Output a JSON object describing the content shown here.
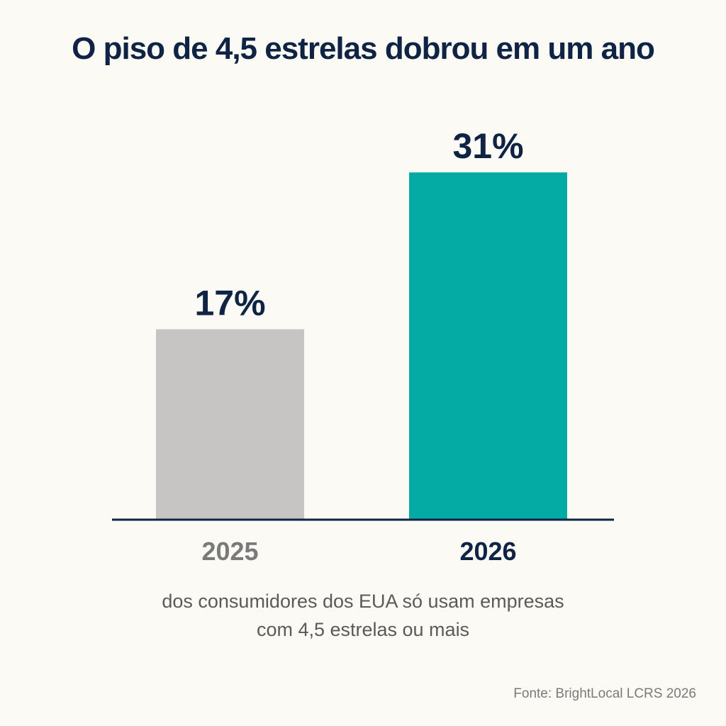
{
  "title": "O piso de 4,5 estrelas dobrou em um ano",
  "caption": {
    "line1": "dos consumidores dos EUA só usam empresas",
    "line2": "com 4,5 estrelas ou mais"
  },
  "source": "Fonte: BrightLocal LCRS 2026",
  "colors": {
    "bar_2025": "#c6c5c3",
    "bar_2026": "#04aaa4",
    "value_label": "#0f2345",
    "axis": "#0f2345",
    "tick_2025": "#7a7a7a",
    "tick_2026": "#0f2345"
  },
  "chart_data": {
    "type": "bar",
    "title": "O piso de 4,5 estrelas dobrou em um ano",
    "categories": [
      "2025",
      "2026"
    ],
    "values": [
      17,
      31
    ],
    "value_labels": [
      "17%",
      "31%"
    ],
    "unit": "%",
    "xlabel": "",
    "ylabel": "",
    "ylim": [
      0,
      35
    ],
    "grid": false,
    "legend": "none"
  }
}
